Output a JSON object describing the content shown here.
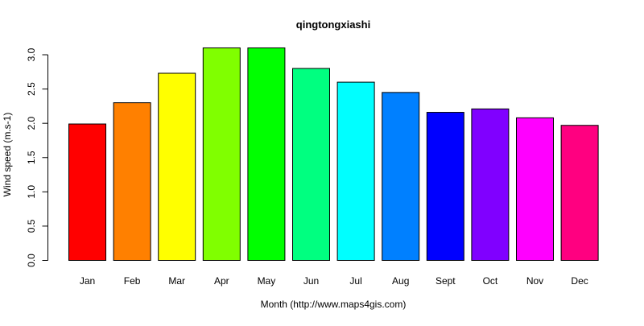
{
  "chart_data": {
    "type": "bar",
    "title": "qingtongxiashi",
    "xlabel": "Month (http://www.maps4gis.com)",
    "ylabel": "Wind speed (m.s-1)",
    "categories": [
      "Jan",
      "Feb",
      "Mar",
      "Apr",
      "May",
      "Jun",
      "Jul",
      "Aug",
      "Sept",
      "Oct",
      "Nov",
      "Dec"
    ],
    "values": [
      1.99,
      2.3,
      2.73,
      3.1,
      3.1,
      2.8,
      2.6,
      2.45,
      2.16,
      2.21,
      2.08,
      1.97
    ],
    "colors": [
      "#FF0000",
      "#FF8000",
      "#FFFF00",
      "#80FF00",
      "#00FF00",
      "#00FF80",
      "#00FFFF",
      "#0080FF",
      "#0000FF",
      "#8000FF",
      "#FF00FF",
      "#FF0080"
    ],
    "yticks": [
      "0.0",
      "0.5",
      "1.0",
      "1.5",
      "2.0",
      "2.5",
      "3.0"
    ],
    "ylim": [
      0,
      3.1
    ],
    "grid": false,
    "legend": "none"
  }
}
